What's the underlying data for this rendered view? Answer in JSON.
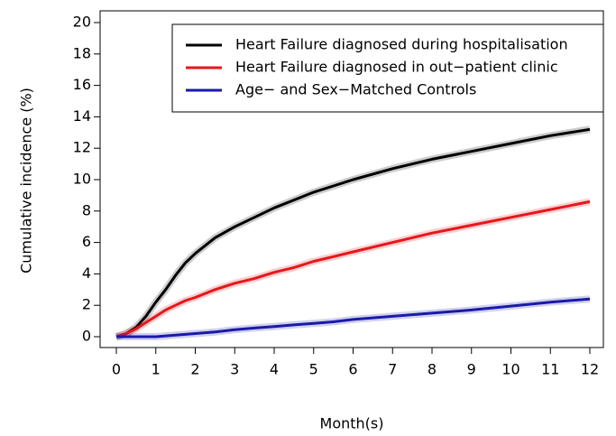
{
  "chart_data": {
    "type": "line",
    "x_label": "Month(s)",
    "y_label": "Cumulative incidence (%)",
    "x": [
      0,
      0.25,
      0.5,
      0.75,
      1,
      1.25,
      1.5,
      1.75,
      2,
      2.5,
      3,
      3.5,
      4,
      4.5,
      5,
      5.5,
      6,
      7,
      8,
      9,
      10,
      11,
      12
    ],
    "series": [
      {
        "name": "Heart Failure diagnosed during hospitalisation",
        "color": "#000000",
        "values": [
          0,
          0.2,
          0.6,
          1.3,
          2.2,
          3.0,
          3.9,
          4.7,
          5.3,
          6.3,
          7.0,
          7.6,
          8.2,
          8.7,
          9.2,
          9.6,
          10.0,
          10.7,
          11.3,
          11.8,
          12.3,
          12.8,
          13.2
        ]
      },
      {
        "name": "Heart Failure diagnosed in out−patient clinic",
        "color": "#e8161b",
        "values": [
          0,
          0.2,
          0.5,
          0.9,
          1.3,
          1.7,
          2.0,
          2.3,
          2.5,
          3.0,
          3.4,
          3.7,
          4.1,
          4.4,
          4.8,
          5.1,
          5.4,
          6.0,
          6.6,
          7.1,
          7.6,
          8.1,
          8.6
        ]
      },
      {
        "name": "Age− and Sex−Matched Controls",
        "color": "#1a1aa8",
        "values": [
          0,
          0,
          0,
          0,
          0,
          0.05,
          0.1,
          0.15,
          0.2,
          0.3,
          0.45,
          0.55,
          0.65,
          0.75,
          0.85,
          0.95,
          1.1,
          1.3,
          1.5,
          1.7,
          1.95,
          2.2,
          2.4
        ]
      }
    ],
    "xlim": [
      0,
      12
    ],
    "xticks": [
      0,
      1,
      2,
      3,
      4,
      5,
      6,
      7,
      8,
      9,
      10,
      11,
      12
    ],
    "ylim": [
      0,
      20
    ],
    "yticks": [
      0,
      2,
      4,
      6,
      8,
      10,
      12,
      14,
      16,
      18,
      20
    ],
    "legend": "top-right"
  }
}
